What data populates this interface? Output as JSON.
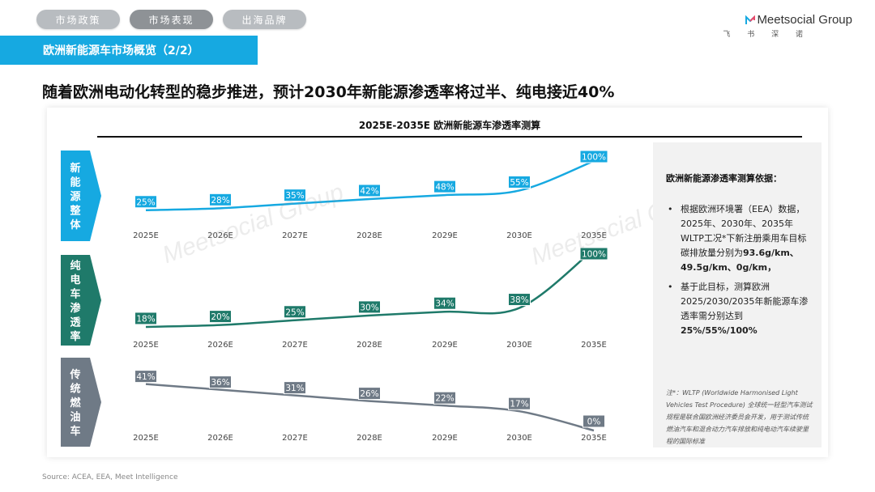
{
  "nav": {
    "tabs": [
      {
        "label": "市场政策"
      },
      {
        "label": "市场表现"
      },
      {
        "label": "出海品牌"
      }
    ],
    "active_index": 1
  },
  "logo": {
    "name": "Meetsocial Group",
    "sub": "飞 书 深 诺"
  },
  "section": {
    "title": "欧洲新能源车市场概览（2/2）"
  },
  "headline": "随着欧洲电动化转型的稳步推进，预计2030年新能源渗透率将过半、纯电接近40%",
  "chart_title": "2025E-2035E 欧洲新能源车渗透率测算",
  "side_note": {
    "title": "欧洲新能源渗透率测算依据：",
    "item1_text": "根据欧洲环境署（EEA）数据，2025年、2030年、2035年WLTP工况*下新注册乘用车目标碳排放量分别为",
    "item1_bold": "93.6g/km、49.5g/km、0g/km，",
    "item2_text": "基于此目标，测算欧洲2025/2030/2035年新能源车渗透率需分别达到",
    "item2_bold": "25%/55%/100%",
    "footnote": "注*：WLTP (Worldwide Harmonised Light Vehicles Test Procedure) 全球统一轻型汽车测试规程是联合国欧洲经济委员会开发，用于测试传统燃油汽车和混合动力汽车排放和纯电动汽车续驶里程的国际标准"
  },
  "source": "Source: ACEA, EEA, Meet Intelligence",
  "watermark": "Meetsocial Group",
  "colors": {
    "blue": "#16a9e1",
    "teal": "#1f7a6a",
    "gray": "#6f7a86",
    "nav_inactive": "#b8bcc0",
    "nav_active": "#8e9296"
  },
  "chart_data": {
    "type": "line",
    "title": "2025E-2035E 欧洲新能源车渗透率测算",
    "categories": [
      "2025E",
      "2026E",
      "2027E",
      "2028E",
      "2029E",
      "2030E",
      "2035E"
    ],
    "series": [
      {
        "name": "新能源整体",
        "values": [
          25,
          28,
          35,
          42,
          48,
          55,
          100
        ],
        "labels": [
          "25%",
          "28%",
          "35%",
          "42%",
          "48%",
          "55%",
          "100%"
        ],
        "color": "#16a9e1"
      },
      {
        "name": "纯电车渗透率",
        "values": [
          18,
          20,
          25,
          30,
          34,
          38,
          100
        ],
        "labels": [
          "18%",
          "20%",
          "25%",
          "30%",
          "34%",
          "38%",
          "100%"
        ],
        "color": "#1f7a6a"
      },
      {
        "name": "传统燃油车",
        "values": [
          41,
          36,
          31,
          26,
          22,
          17,
          0
        ],
        "labels": [
          "41%",
          "36%",
          "31%",
          "26%",
          "22%",
          "17%",
          "0%"
        ],
        "color": "#6f7a86"
      }
    ]
  }
}
